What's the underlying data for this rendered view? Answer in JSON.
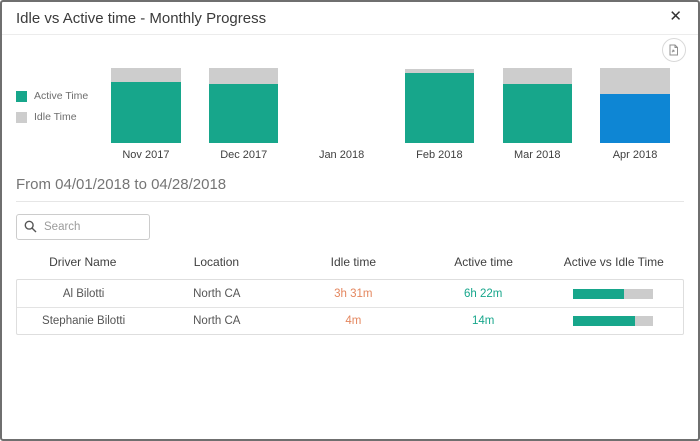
{
  "window": {
    "title": "Idle vs Active time - Monthly Progress",
    "close_label": "✕"
  },
  "colors": {
    "active_teal": "#17a68b",
    "idle_gray": "#cdcdcd",
    "highlight_blue": "#0e86d4",
    "idle_text_orange": "#e4875f",
    "active_text_teal": "#17a68b",
    "progress_track": "#cccccc"
  },
  "chart_data": {
    "type": "bar",
    "stacked": true,
    "categories": [
      "Nov 2017",
      "Dec 2017",
      "Jan 2018",
      "Feb 2018",
      "Mar 2018",
      "Apr 2018"
    ],
    "series": [
      {
        "name": "Active Time",
        "color": "#17a68b",
        "values": [
          82,
          79,
          0,
          93,
          79,
          65
        ]
      },
      {
        "name": "Idle Time",
        "color": "#cdcdcd",
        "values": [
          18,
          21,
          0,
          6,
          21,
          35
        ]
      }
    ],
    "values_unit": "percent_of_plot_height",
    "highlight_index": 5,
    "highlight_color": "#0e86d4",
    "legend_position": "left",
    "grid": false,
    "title": "",
    "xlabel": "",
    "ylabel": ""
  },
  "filter": {
    "date_range": "From 04/01/2018 to 04/28/2018"
  },
  "search": {
    "placeholder": "Search"
  },
  "table": {
    "columns": [
      "Driver Name",
      "Location",
      "Idle time",
      "Active time",
      "Active vs Idle Time"
    ],
    "rows": [
      {
        "driver": "Al Bilotti",
        "location": "North CA",
        "idle": "3h 31m",
        "active": "6h 22m",
        "active_pct": 64
      },
      {
        "driver": "Stephanie Bilotti",
        "location": "North CA",
        "idle": "4m",
        "active": "14m",
        "active_pct": 78
      }
    ]
  }
}
